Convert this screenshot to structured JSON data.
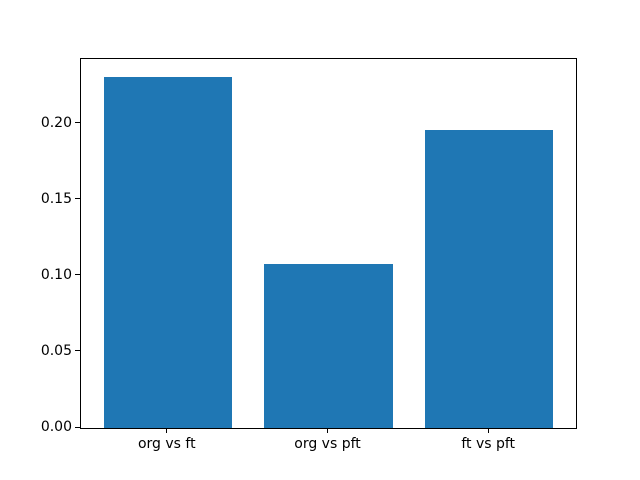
{
  "figure": {
    "background_color": "#ffffff",
    "axis_color": "#000000",
    "text_color": "#000000"
  },
  "chart_data": {
    "type": "bar",
    "title": "",
    "xlabel": "",
    "ylabel": "",
    "categories": [
      "org vs ft",
      "org vs pft",
      "ft vs pft"
    ],
    "values": [
      0.231,
      0.108,
      0.196
    ],
    "bar_color": "#1f77b4",
    "bar_width_units": 0.8,
    "ylim": [
      0,
      0.2425
    ],
    "yticks": [
      0.0,
      0.05,
      0.1,
      0.15,
      0.2
    ],
    "ytick_labels": [
      "0.00",
      "0.05",
      "0.10",
      "0.15",
      "0.20"
    ],
    "grid": false,
    "legend": null
  }
}
